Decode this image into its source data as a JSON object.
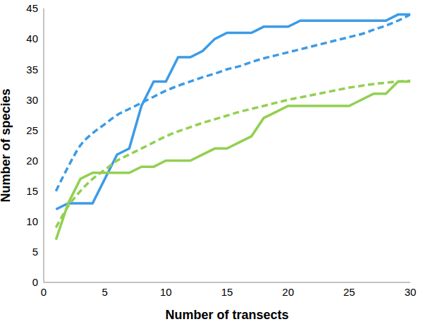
{
  "chart_data": {
    "type": "line",
    "x_label": "Number of transects",
    "y_label": "Number of species",
    "x": [
      1,
      2,
      3,
      4,
      5,
      6,
      7,
      8,
      9,
      10,
      11,
      12,
      13,
      14,
      15,
      16,
      17,
      18,
      19,
      20,
      21,
      22,
      23,
      24,
      25,
      26,
      27,
      28,
      29,
      30
    ],
    "xlim": [
      0,
      30
    ],
    "xticks": [
      0,
      5,
      10,
      15,
      20,
      25,
      30
    ],
    "ylim": [
      0,
      45
    ],
    "yticks": [
      0,
      5,
      10,
      15,
      20,
      25,
      30,
      35,
      40,
      45
    ],
    "grid": false,
    "series": [
      {
        "color": "#3c9be6",
        "line_style": "solid",
        "values": [
          12,
          13,
          13,
          13,
          17,
          21,
          22,
          29,
          33,
          33,
          37,
          37,
          38,
          40,
          41,
          41,
          41,
          42,
          42,
          42,
          43,
          43,
          43,
          43,
          43,
          43,
          43,
          43,
          44,
          44
        ]
      },
      {
        "color": "#3c9be6",
        "line_style": "dashed",
        "values": [
          15,
          19,
          22.5,
          24.5,
          26,
          27.5,
          28.5,
          29.5,
          30.5,
          31.5,
          32.3,
          33,
          33.7,
          34.3,
          35,
          35.5,
          36.2,
          36.8,
          37.3,
          37.8,
          38.3,
          38.8,
          39.3,
          39.8,
          40.3,
          40.8,
          41.5,
          42.2,
          43,
          44
        ]
      },
      {
        "color": "#92d050",
        "line_style": "solid",
        "values": [
          7,
          13,
          17,
          18,
          18,
          18,
          18,
          19,
          19,
          20,
          20,
          20,
          21,
          22,
          22,
          23,
          24,
          27,
          28,
          29,
          29,
          29,
          29,
          29,
          29,
          30,
          31,
          31,
          33,
          33
        ]
      },
      {
        "color": "#92d050",
        "line_style": "dashed",
        "values": [
          9,
          12.5,
          15,
          17,
          18.5,
          20,
          21,
          22,
          23,
          24,
          24.8,
          25.5,
          26.2,
          26.8,
          27.4,
          28,
          28.5,
          29,
          29.5,
          30,
          30.4,
          30.8,
          31.2,
          31.6,
          32,
          32.3,
          32.6,
          32.8,
          33,
          33.1
        ]
      }
    ]
  }
}
